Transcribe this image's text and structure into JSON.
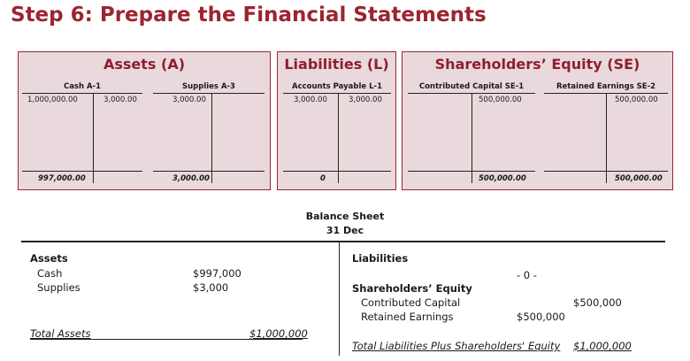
{
  "title": "Step 6: Prepare the Financial Statements",
  "panels": {
    "assets": {
      "title": "Assets (A)",
      "cash": {
        "name": "Cash A-1",
        "debit": "1,000,000.00",
        "credit": "3,000.00",
        "balance": "997,000.00"
      },
      "supplies": {
        "name": "Supplies A-3",
        "debit": "3,000.00",
        "balance": "3,000.00"
      }
    },
    "liabilities": {
      "title": "Liabilities (L)",
      "accounts_payable": {
        "name": "Accounts Payable L-1",
        "debit": "3,000.00",
        "credit": "3,000.00",
        "balance": "0"
      }
    },
    "equity": {
      "title": "Shareholders’ Equity (SE)",
      "contributed_capital": {
        "name": "Contributed Capital SE-1",
        "credit": "500,000.00",
        "balance": "500,000.00"
      },
      "retained_earnings": {
        "name": "Retained Earnings SE-2",
        "credit": "500,000.00",
        "balance": "500,000.00"
      }
    }
  },
  "balance_sheet": {
    "title": "Balance Sheet",
    "date": "31 Dec",
    "assets_heading": "Assets",
    "cash_label": "Cash",
    "cash_value": "$997,000",
    "supplies_label": "Supplies",
    "supplies_value": "$3,000",
    "total_assets_label": "Total Assets",
    "total_assets_value": "$1,000,000",
    "liabilities_heading": "Liabilities",
    "liabilities_value": "- 0 -",
    "equity_heading": "Shareholders’ Equity",
    "contributed_label": "Contributed Capital",
    "contributed_value": "$500,000",
    "retained_label": "Retained Earnings",
    "retained_value": "$500,000",
    "total_le_label": "Total Liabilities Plus Shareholders' Equity",
    "total_le_value": "$1,000,000"
  }
}
